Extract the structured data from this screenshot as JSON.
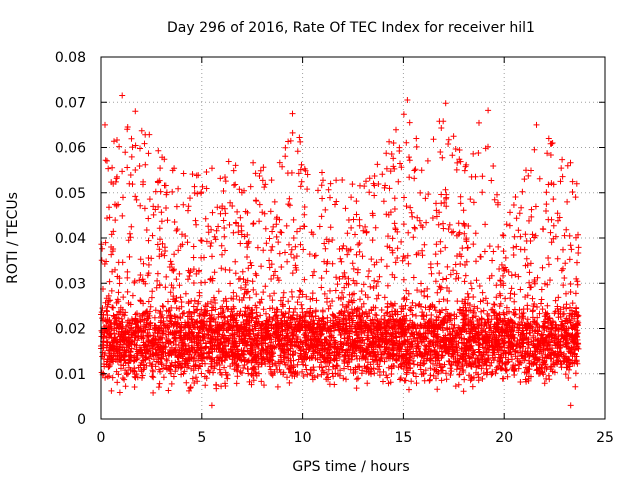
{
  "chart_data": {
    "type": "scatter",
    "title": "Day 296 of 2016, Rate Of TEC Index for receiver hil1",
    "xlabel": "GPS time / hours",
    "ylabel": "ROTI / TECUs",
    "xlim": [
      0,
      25
    ],
    "ylim": [
      0,
      0.08
    ],
    "xticks": [
      0,
      5,
      10,
      15,
      20,
      25
    ],
    "xtick_labels": [
      "0",
      "5",
      "10",
      "15",
      "20",
      "25"
    ],
    "yticks": [
      0,
      0.01,
      0.02,
      0.03,
      0.04,
      0.05,
      0.06,
      0.07,
      0.08
    ],
    "ytick_labels": [
      "0",
      "0.01",
      "0.02",
      "0.03",
      "0.04",
      "0.05",
      "0.06",
      "0.07",
      "0.08"
    ],
    "grid": true,
    "marker": "+",
    "color": "#ff0000",
    "series": [
      {
        "name": "ROTI",
        "x_range": [
          0,
          23.7
        ],
        "n_points": 5200,
        "baseline_min": 0.005,
        "baseline_max": 0.025,
        "envelope": [
          {
            "x": 0.0,
            "peak": 0.055
          },
          {
            "x": 1.0,
            "peak": 0.07
          },
          {
            "x": 2.0,
            "peak": 0.068
          },
          {
            "x": 3.0,
            "peak": 0.058
          },
          {
            "x": 4.0,
            "peak": 0.055
          },
          {
            "x": 5.0,
            "peak": 0.056
          },
          {
            "x": 6.0,
            "peak": 0.06
          },
          {
            "x": 7.0,
            "peak": 0.058
          },
          {
            "x": 8.0,
            "peak": 0.058
          },
          {
            "x": 9.0,
            "peak": 0.06
          },
          {
            "x": 9.5,
            "peak": 0.067
          },
          {
            "x": 10.0,
            "peak": 0.06
          },
          {
            "x": 11.0,
            "peak": 0.056
          },
          {
            "x": 12.0,
            "peak": 0.053
          },
          {
            "x": 13.0,
            "peak": 0.052
          },
          {
            "x": 14.0,
            "peak": 0.058
          },
          {
            "x": 15.0,
            "peak": 0.07
          },
          {
            "x": 16.0,
            "peak": 0.058
          },
          {
            "x": 17.0,
            "peak": 0.069
          },
          {
            "x": 18.0,
            "peak": 0.058
          },
          {
            "x": 19.0,
            "peak": 0.068
          },
          {
            "x": 20.0,
            "peak": 0.045
          },
          {
            "x": 21.0,
            "peak": 0.055
          },
          {
            "x": 22.0,
            "peak": 0.065
          },
          {
            "x": 23.0,
            "peak": 0.06
          },
          {
            "x": 23.7,
            "peak": 0.055
          }
        ],
        "notable_points": [
          {
            "x": 0.2,
            "y": 0.065
          },
          {
            "x": 1.05,
            "y": 0.0715
          },
          {
            "x": 1.7,
            "y": 0.068
          },
          {
            "x": 9.5,
            "y": 0.0675
          },
          {
            "x": 15.2,
            "y": 0.0705
          },
          {
            "x": 17.1,
            "y": 0.0698
          },
          {
            "x": 19.2,
            "y": 0.0682
          },
          {
            "x": 21.6,
            "y": 0.065
          },
          {
            "x": 22.4,
            "y": 0.061
          },
          {
            "x": 23.6,
            "y": 0.052
          },
          {
            "x": 23.3,
            "y": 0.003
          },
          {
            "x": 5.5,
            "y": 0.003
          }
        ]
      }
    ]
  }
}
